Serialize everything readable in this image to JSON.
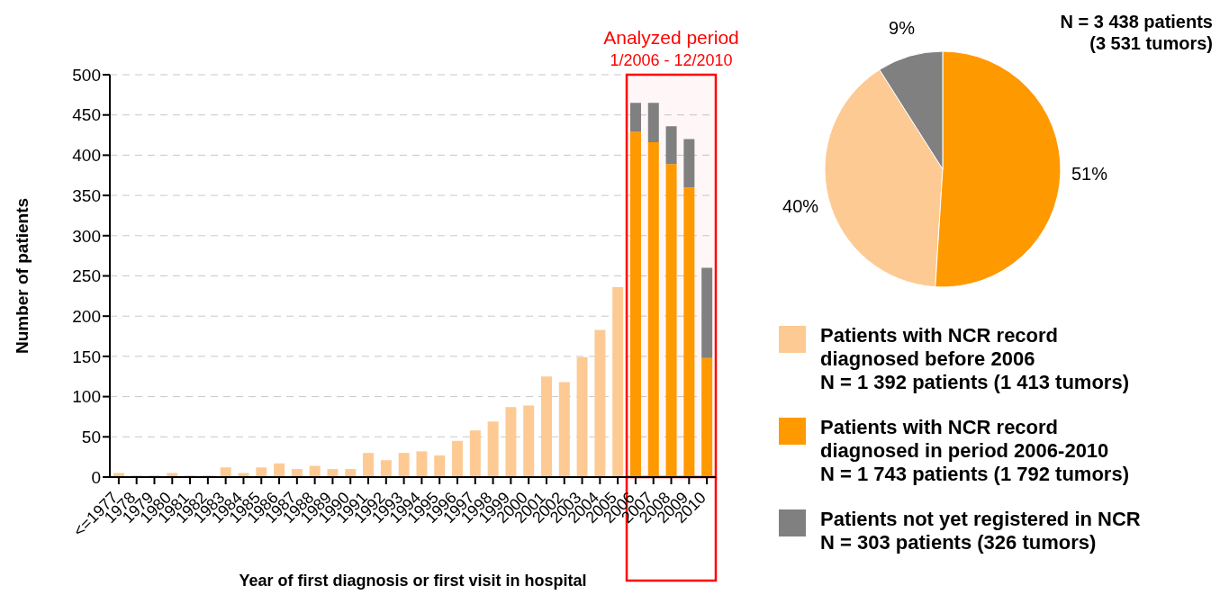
{
  "chart_data": [
    {
      "type": "bar",
      "stacked": true,
      "xlabel": "Year of first diagnosis or first visit in hospital",
      "ylabel": "Number of patients",
      "categories": [
        "<=1977",
        "1978",
        "1979",
        "1980",
        "1981",
        "1982",
        "1983",
        "1984",
        "1985",
        "1986",
        "1987",
        "1988",
        "1989",
        "1990",
        "1991",
        "1992",
        "1993",
        "1994",
        "1995",
        "1996",
        "1997",
        "1998",
        "1999",
        "2000",
        "2001",
        "2002",
        "2003",
        "2004",
        "2005",
        "2006",
        "2007",
        "2008",
        "2009",
        "2010"
      ],
      "series": [
        {
          "color": "#fdca94",
          "values": [
            5,
            2,
            2,
            5,
            2,
            2,
            12,
            5,
            12,
            17,
            10,
            14,
            10,
            10,
            30,
            21,
            30,
            32,
            27,
            45,
            58,
            69,
            87,
            89,
            125,
            118,
            149,
            183,
            236,
            null,
            null,
            null,
            null,
            null
          ]
        },
        {
          "color": "#ff9900",
          "values": [
            null,
            null,
            null,
            null,
            null,
            null,
            null,
            null,
            null,
            null,
            null,
            null,
            null,
            null,
            null,
            null,
            null,
            null,
            null,
            null,
            null,
            null,
            null,
            null,
            null,
            null,
            null,
            null,
            null,
            429,
            416,
            389,
            360,
            148
          ]
        },
        {
          "color": "#808080",
          "values": [
            null,
            null,
            null,
            null,
            null,
            null,
            null,
            null,
            null,
            null,
            null,
            null,
            null,
            null,
            null,
            null,
            null,
            null,
            null,
            null,
            null,
            null,
            null,
            null,
            null,
            null,
            null,
            null,
            null,
            36,
            49,
            47,
            60,
            112
          ]
        }
      ],
      "ylim": [
        0,
        500
      ],
      "yticks": [
        0,
        50,
        100,
        150,
        200,
        250,
        300,
        350,
        400,
        450,
        500
      ],
      "grid": "y",
      "bands": [
        {
          "axis": "x",
          "from": "2006",
          "to": "2010",
          "label": "Analyzed period\n1/2006 - 12/2010",
          "color": "#ff0000"
        }
      ]
    },
    {
      "type": "pie",
      "title": "N = 3 438 patients\n(3 531 tumors)",
      "categories": [
        "Patients with NCR record\ndiagnosed before 2006\nN = 1 392 patients (1 413 tumors)",
        "Patients with NCR record\ndiagnosed in period 2006-2010\nN = 1 743 patients (1 792 tumors)",
        "Patients not yet registered in NCR\nN = 303 patients (326 tumors)"
      ],
      "values": [
        40,
        51,
        9
      ],
      "colors": [
        "#fdca94",
        "#ff9900",
        "#808080"
      ],
      "value_labels": [
        "40%",
        "51%",
        "9%"
      ],
      "legend": "bottom"
    }
  ]
}
